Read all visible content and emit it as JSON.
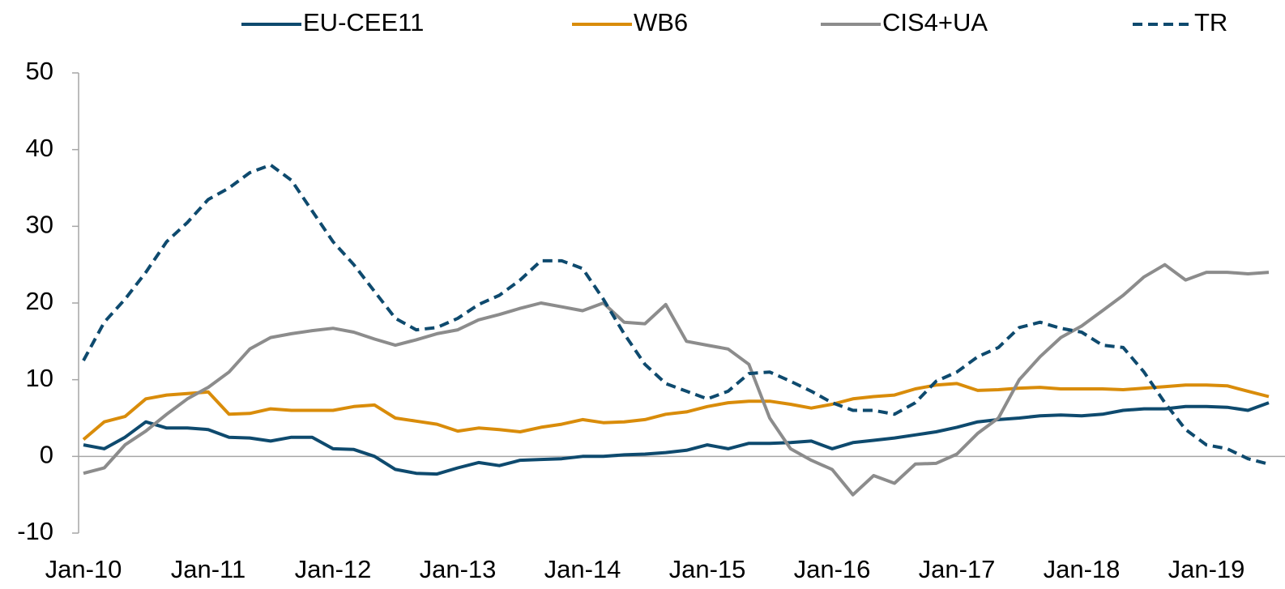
{
  "chart_data": {
    "type": "line",
    "categories": [
      "Jan-10",
      null,
      null,
      null,
      null,
      null,
      "Jan-11",
      null,
      null,
      null,
      null,
      null,
      "Jan-12",
      null,
      null,
      null,
      null,
      null,
      "Jan-13",
      null,
      null,
      null,
      null,
      null,
      "Jan-14",
      null,
      null,
      null,
      null,
      null,
      "Jan-15",
      null,
      null,
      null,
      null,
      null,
      "Jan-16",
      null,
      null,
      null,
      null,
      null,
      "Jan-17",
      null,
      null,
      null,
      null,
      null,
      "Jan-18",
      null,
      null,
      null,
      null,
      null,
      "Jan-19",
      null,
      null,
      null
    ],
    "series": [
      {
        "name": "EU-CEE11",
        "color": "#0e4a6e",
        "dash": false,
        "values": [
          1.5,
          1.0,
          2.5,
          4.5,
          3.7,
          3.7,
          3.5,
          2.5,
          2.4,
          2.0,
          2.5,
          2.5,
          1.0,
          0.9,
          0.0,
          -1.7,
          -2.2,
          -2.3,
          -1.5,
          -0.8,
          -1.2,
          -0.5,
          -0.4,
          -0.3,
          0,
          0,
          0.2,
          0.3,
          0.5,
          0.8,
          1.5,
          1.0,
          1.7,
          1.7,
          1.8,
          2.0,
          1.0,
          1.8,
          2.1,
          2.4,
          2.8,
          3.2,
          3.8,
          4.5,
          4.8,
          5.0,
          5.3,
          5.4,
          5.3,
          5.5,
          6.0,
          6.2,
          6.2,
          6.5,
          6.5,
          6.4,
          6.0,
          7.0
        ]
      },
      {
        "name": "WB6",
        "color": "#d98c0a",
        "dash": false,
        "values": [
          2.2,
          4.5,
          5.2,
          7.5,
          8.0,
          8.2,
          8.4,
          5.5,
          5.6,
          6.2,
          6.0,
          6.0,
          6.0,
          6.5,
          6.7,
          5.0,
          4.6,
          4.2,
          3.3,
          3.7,
          3.5,
          3.2,
          3.8,
          4.2,
          4.8,
          4.4,
          4.5,
          4.8,
          5.5,
          5.8,
          6.5,
          7.0,
          7.2,
          7.2,
          6.8,
          6.3,
          6.8,
          7.5,
          7.8,
          8.0,
          8.8,
          9.3,
          9.5,
          8.6,
          8.7,
          8.9,
          9.0,
          8.8,
          8.8,
          8.8,
          8.7,
          8.9,
          9.1,
          9.3,
          9.3,
          9.2,
          8.5,
          7.8
        ]
      },
      {
        "name": "CIS4+UA",
        "color": "#8c8c8c",
        "dash": false,
        "values": [
          -2.2,
          -1.5,
          1.5,
          3.3,
          5.5,
          7.5,
          9.0,
          11,
          14,
          15.5,
          16,
          16.4,
          16.7,
          16.2,
          15.3,
          14.5,
          15.2,
          16.0,
          16.5,
          17.8,
          18.5,
          19.3,
          20,
          19.5,
          19.0,
          20,
          17.5,
          17.3,
          19.8,
          15,
          14.5,
          14,
          12,
          5,
          1.0,
          -0.5,
          -1.7,
          -5,
          -2.5,
          -3.5,
          -1,
          -0.9,
          0.3,
          3,
          5,
          10,
          13,
          15.5,
          17,
          19,
          21,
          23.4,
          25,
          23,
          24,
          24,
          23.8,
          24
        ]
      },
      {
        "name": "TR",
        "color": "#0e4a6e",
        "dash": true,
        "values": [
          12.5,
          17.5,
          20.5,
          24,
          28,
          30.5,
          33.5,
          35,
          37,
          38,
          36,
          32,
          28,
          25,
          21.5,
          18,
          16.5,
          16.8,
          18,
          19.8,
          21,
          23,
          25.5,
          25.5,
          24.5,
          20.5,
          16,
          12,
          9.5,
          8.5,
          7.5,
          8.5,
          10.8,
          11,
          9.8,
          8.5,
          7,
          6,
          6,
          5.5,
          7,
          9.8,
          11,
          13,
          14.2,
          16.8,
          17.5,
          16.7,
          16.2,
          14.5,
          14.2,
          11,
          7,
          3.5,
          1.5,
          1.0,
          -0.3,
          -1.0
        ]
      }
    ],
    "ylim": [
      -10,
      50
    ],
    "yticks": [
      -10,
      0,
      10,
      20,
      30,
      40,
      50
    ],
    "legend": "top"
  }
}
